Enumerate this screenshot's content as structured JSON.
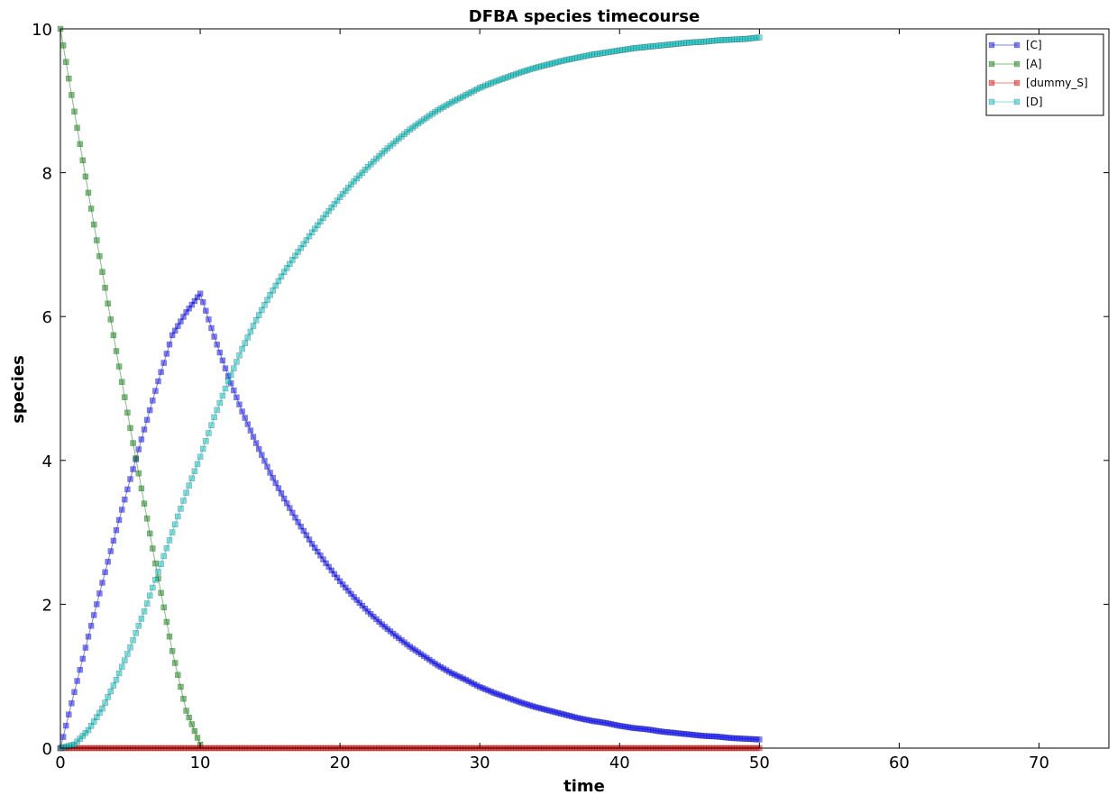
{
  "chart_data": {
    "type": "line",
    "title": "DFBA species timecourse",
    "xlabel": "time",
    "ylabel": "species",
    "xlim": [
      0,
      75
    ],
    "ylim": [
      0,
      10
    ],
    "xticks": [
      "0",
      "10",
      "20",
      "30",
      "40",
      "50",
      "60",
      "70"
    ],
    "yticks": [
      "0",
      "2",
      "4",
      "6",
      "8",
      "10"
    ],
    "grid": false,
    "legend_position": "top-right",
    "marker": "square",
    "series": [
      {
        "name": "[C]",
        "color": "#0000ff",
        "x": [
          0,
          1,
          2,
          3,
          4,
          5,
          6,
          7,
          8,
          9,
          10,
          11,
          12,
          13,
          14,
          15,
          16,
          17,
          18,
          19,
          20,
          21,
          22,
          23,
          24,
          25,
          26,
          27,
          28,
          29,
          30,
          31,
          32,
          33,
          34,
          35,
          36,
          37,
          38,
          39,
          40,
          41,
          42,
          43,
          44,
          45,
          46,
          47,
          48,
          49,
          50
        ],
        "values": [
          0.0,
          0.78,
          1.55,
          2.3,
          3.03,
          3.74,
          4.43,
          5.1,
          5.74,
          6.06,
          6.32,
          5.72,
          5.17,
          4.68,
          4.24,
          3.83,
          3.47,
          3.14,
          2.84,
          2.57,
          2.32,
          2.1,
          1.9,
          1.72,
          1.56,
          1.41,
          1.28,
          1.15,
          1.04,
          0.95,
          0.85,
          0.77,
          0.7,
          0.63,
          0.57,
          0.52,
          0.47,
          0.42,
          0.38,
          0.35,
          0.31,
          0.28,
          0.26,
          0.23,
          0.21,
          0.19,
          0.17,
          0.16,
          0.14,
          0.13,
          0.12
        ]
      },
      {
        "name": "[A]",
        "color": "#008000",
        "x": [
          0,
          1,
          2,
          3,
          4,
          5,
          6,
          7,
          8,
          9,
          10
        ],
        "values": [
          10.0,
          8.85,
          7.72,
          6.62,
          5.52,
          4.45,
          3.4,
          2.36,
          1.35,
          0.52,
          0.05
        ]
      },
      {
        "name": "[dummy_S]",
        "color": "#ff0000",
        "x": [
          0,
          10,
          20,
          30,
          40,
          50
        ],
        "values": [
          0.0,
          0.0,
          0.0,
          0.0,
          0.0,
          0.0
        ]
      },
      {
        "name": "[D]",
        "color": "#00bfbf",
        "x": [
          0,
          1,
          2,
          3,
          4,
          5,
          6,
          7,
          8,
          9,
          10,
          11,
          12,
          13,
          14,
          15,
          16,
          17,
          18,
          19,
          20,
          21,
          22,
          23,
          24,
          25,
          26,
          27,
          28,
          29,
          30,
          31,
          32,
          33,
          34,
          35,
          36,
          37,
          38,
          39,
          40,
          41,
          42,
          43,
          44,
          45,
          46,
          47,
          48,
          49,
          50
        ],
        "values": [
          0.0,
          0.05,
          0.25,
          0.55,
          0.95,
          1.4,
          1.9,
          2.45,
          3.0,
          3.55,
          4.05,
          4.6,
          5.1,
          5.55,
          5.95,
          6.3,
          6.62,
          6.9,
          7.17,
          7.42,
          7.66,
          7.88,
          8.08,
          8.27,
          8.44,
          8.6,
          8.74,
          8.87,
          8.98,
          9.08,
          9.18,
          9.26,
          9.33,
          9.4,
          9.46,
          9.51,
          9.56,
          9.6,
          9.64,
          9.67,
          9.7,
          9.73,
          9.75,
          9.77,
          9.79,
          9.81,
          9.82,
          9.84,
          9.85,
          9.86,
          9.88
        ]
      }
    ]
  }
}
